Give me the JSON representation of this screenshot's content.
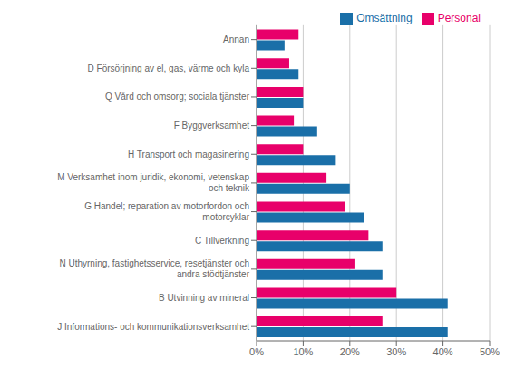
{
  "chart_data": {
    "type": "bar",
    "orientation": "horizontal",
    "categories": [
      "Annan",
      "D  Försörjning av el, gas, värme och kyla",
      "Q  Vård och omsorg; sociala tjänster",
      "F  Byggverksamhet",
      "H  Transport och magasinering",
      "M  Verksamhet inom juridik, ekonomi, vetenskap\noch teknik",
      "G  Handel; reparation av motorfordon och\nmotorcyklar",
      "C  Tillverkning",
      "N  Uthyrning, fastighetsservice, resetjänster och\nandra stödtjänster",
      "B  Utvinning av mineral",
      "J  Informations- och kommunikationsverksamhet"
    ],
    "series": [
      {
        "name": "Personal",
        "color": "#E8006A",
        "values": [
          9,
          7,
          10,
          8,
          10,
          15,
          19,
          24,
          21,
          30,
          27
        ]
      },
      {
        "name": "Omsättning",
        "color": "#1A6FA8",
        "values": [
          6,
          9,
          10,
          13,
          17,
          20,
          23,
          27,
          27,
          41,
          41
        ]
      }
    ],
    "xlim": [
      0,
      50
    ],
    "xticks": [
      {
        "value": 0,
        "label": "0%"
      },
      {
        "value": 10,
        "label": "10%"
      },
      {
        "value": 20,
        "label": "20%"
      },
      {
        "value": 30,
        "label": "30%"
      },
      {
        "value": 40,
        "label": "40%"
      },
      {
        "value": 50,
        "label": "50%"
      }
    ],
    "grid": true,
    "legend": "upper right"
  }
}
